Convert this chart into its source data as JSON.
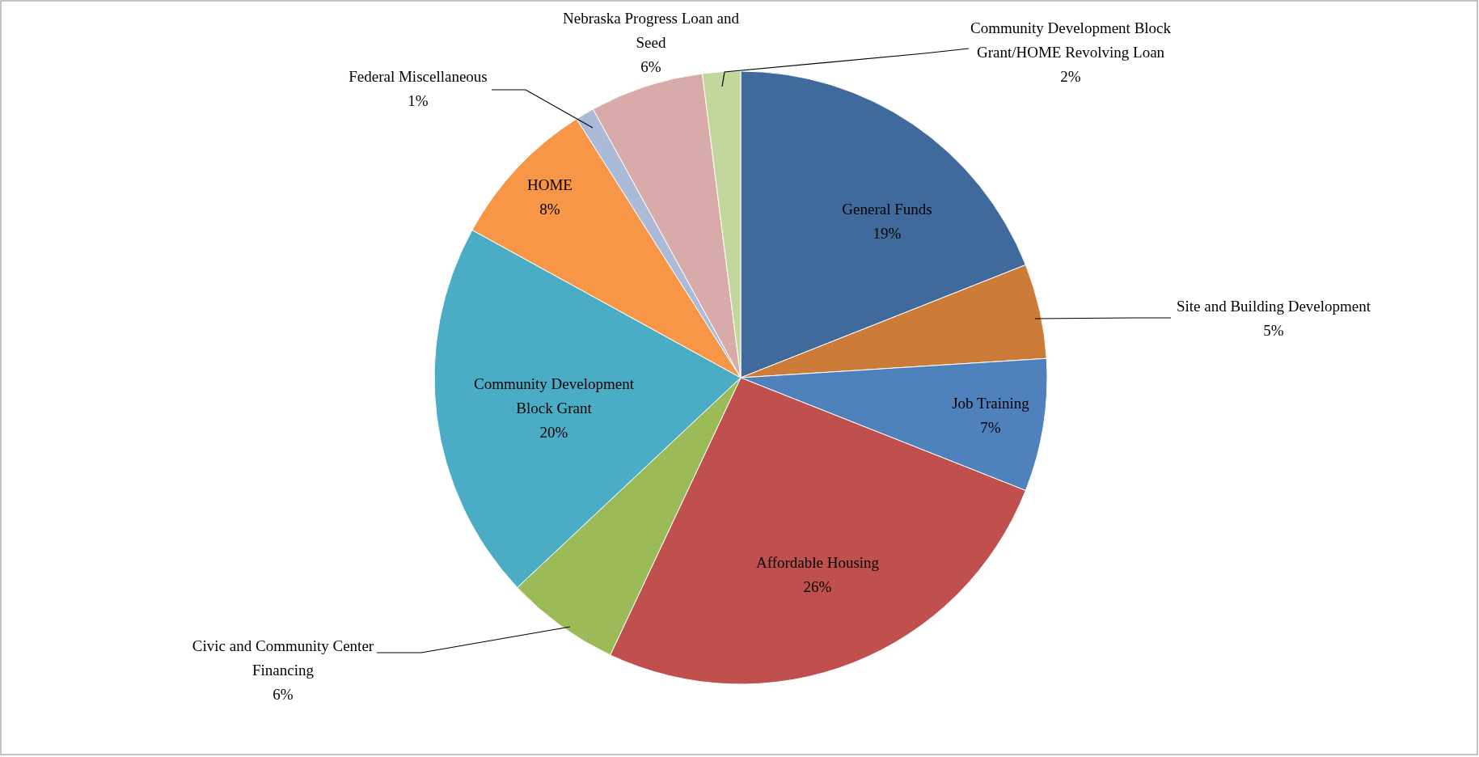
{
  "chart_data": {
    "type": "pie",
    "categories": [
      "General Funds",
      "Site and Building Development",
      "Job Training",
      "Affordable Housing",
      "Civic and Community Center Financing",
      "Community Development Block Grant",
      "HOME",
      "Federal Miscellaneous",
      "Nebraska Progress Loan and Seed",
      "Community Development Block Grant/HOME Revolving Loan"
    ],
    "values": [
      19,
      5,
      7,
      26,
      6,
      20,
      8,
      1,
      6,
      2
    ],
    "value_labels": [
      "19%",
      "5%",
      "7%",
      "26%",
      "6%",
      "20%",
      "8%",
      "1%",
      "6%",
      "2%"
    ],
    "colors": [
      "#3f6a9b",
      "#cc7b38",
      "#4f81bd",
      "#c0504d",
      "#9bbb59",
      "#4bacc6",
      "#f79646",
      "#aabad7",
      "#d9aaaa",
      "#c3d69b"
    ],
    "legend": false
  }
}
